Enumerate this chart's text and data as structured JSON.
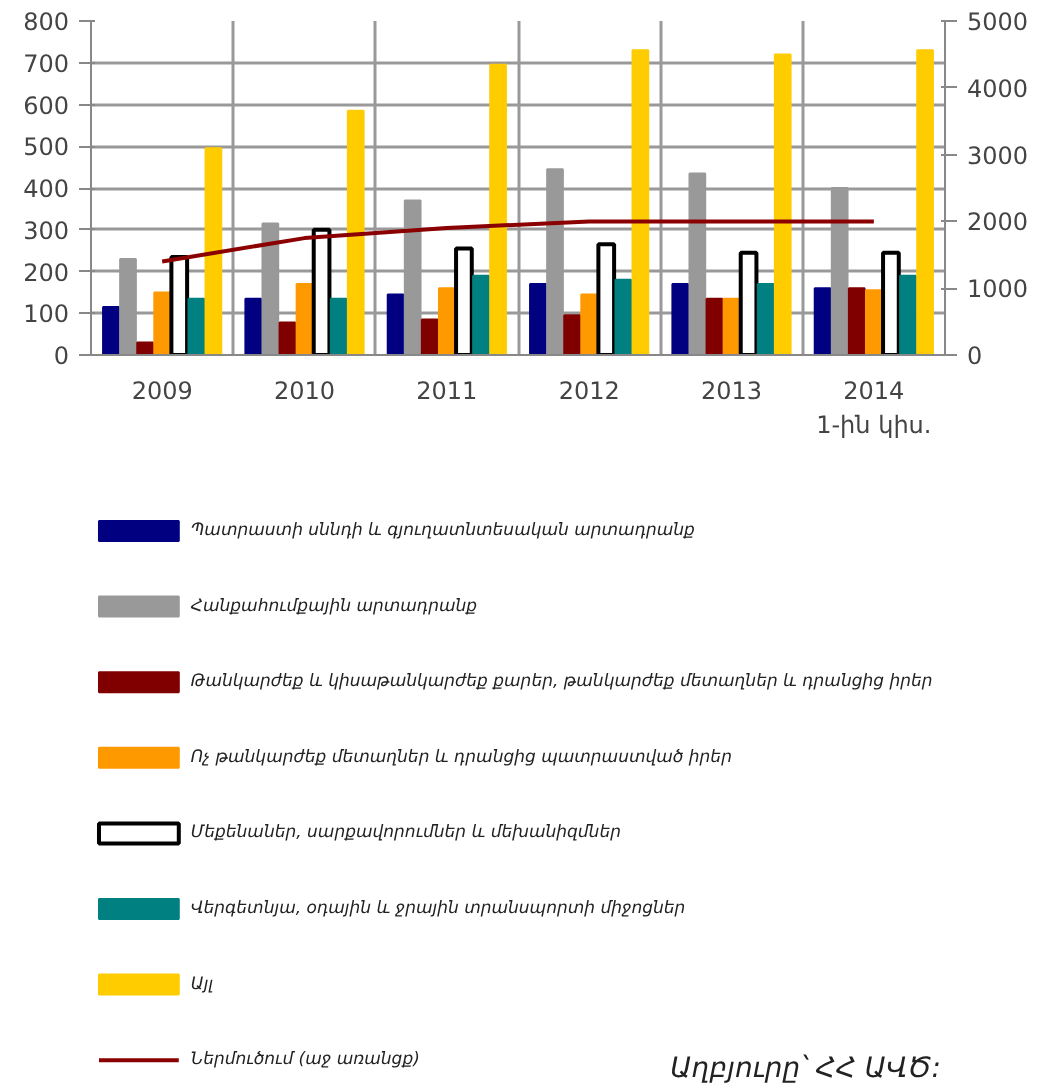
{
  "chart_data": {
    "type": "bar",
    "categories": [
      "2009",
      "2010",
      "2011",
      "2012",
      "2013",
      "2014\n1-ին կիս."
    ],
    "series": [
      {
        "name": "Պատրաստի սննդի և գյուղատնտեսական արտադրանք",
        "color": "#000080",
        "values": [
          115,
          135,
          145,
          170,
          170,
          160
        ]
      },
      {
        "name": "Հանքահումքային արտադրանք",
        "color": "#999999",
        "values": [
          230,
          315,
          370,
          445,
          435,
          400
        ]
      },
      {
        "name": "Թանկարժեք և կիսաթանկարժեք քարեր, թանկարժեք մետաղներ և դրանցից իրեր",
        "color": "#800000",
        "values": [
          30,
          78,
          85,
          95,
          135,
          160
        ]
      },
      {
        "name": "Ոչ թանկարժեք մետաղներ և դրանցից պատրաստված իրեր",
        "color": "#ff9900",
        "values": [
          150,
          170,
          160,
          145,
          135,
          155
        ]
      },
      {
        "name": "Մեքենաներ, սարքավորումներ և մեխանիզմներ",
        "color": "#ffffff",
        "values": [
          235,
          300,
          255,
          265,
          245,
          245
        ]
      },
      {
        "name": "Վերգետնյա, օդային և ջրային տրանսպորտի միջոցներ",
        "color": "#008080",
        "values": [
          135,
          135,
          190,
          180,
          170,
          190
        ]
      },
      {
        "name": "Այլ",
        "color": "#ffcc00",
        "values": [
          495,
          585,
          695,
          730,
          720,
          730
        ]
      },
      {
        "name": "Ներմուծում (աջ առանցք)",
        "color": "#8b0000",
        "type": "line",
        "axis": "y2",
        "values": [
          1400,
          1750,
          1900,
          2000,
          2000,
          2000
        ]
      }
    ],
    "ylim": [
      0,
      800
    ],
    "yticks": [
      0,
      100,
      200,
      300,
      400,
      500,
      600,
      700,
      800
    ],
    "y2lim": [
      0,
      5000
    ],
    "y2ticks": [
      0,
      1000,
      2000,
      3000,
      4000,
      5000
    ],
    "grid": true,
    "legend": "bottom",
    "marker": "none",
    "line_style": "solid",
    "annotations": [
      "Աղբյուրը՝ ՀՀ ԱՎԾ:"
    ]
  }
}
